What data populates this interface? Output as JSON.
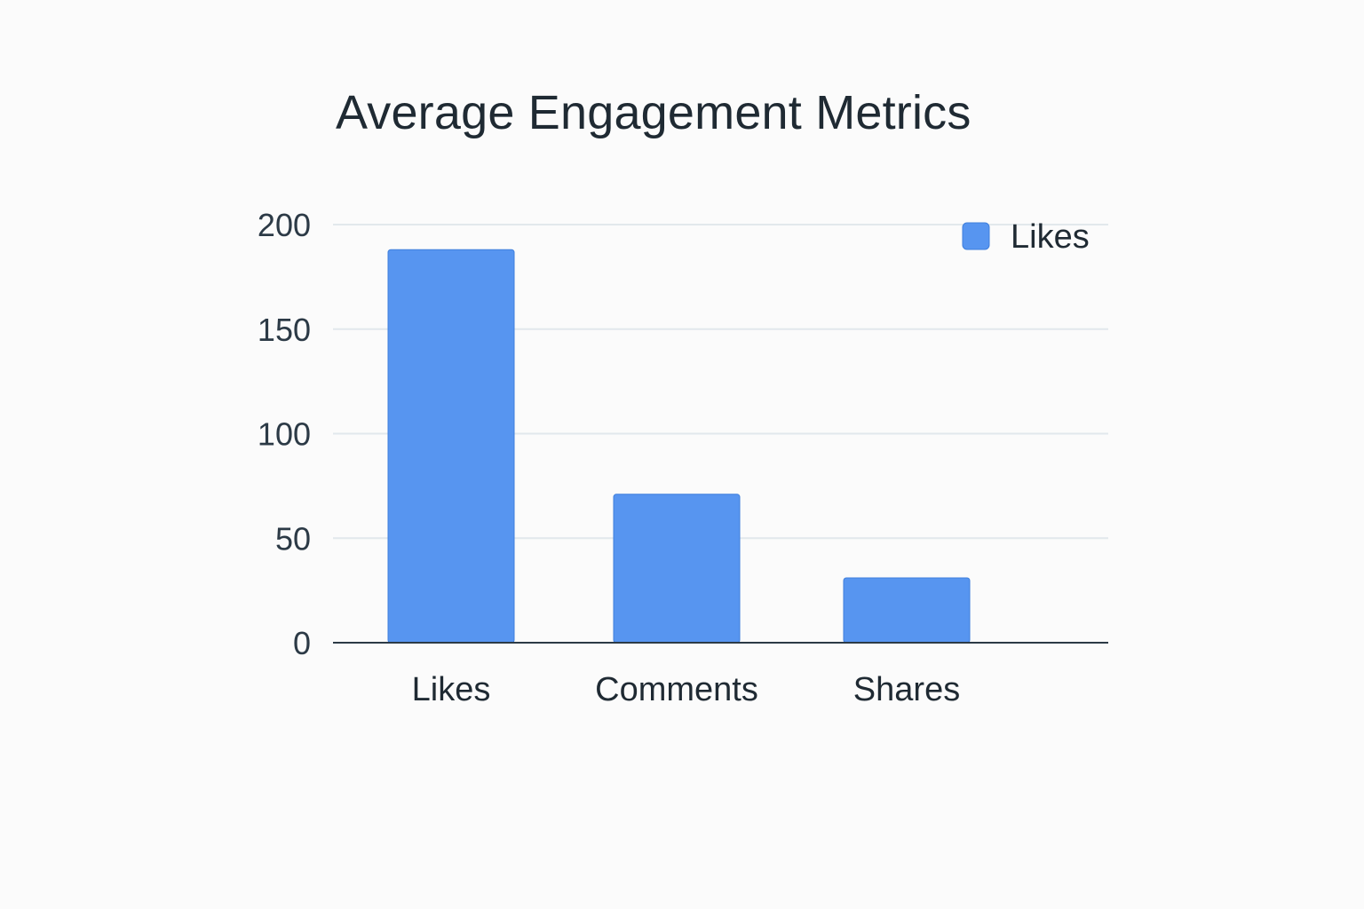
{
  "chart_data": {
    "type": "bar",
    "title": "Average Engagement Metrics",
    "xlabel": "",
    "ylabel": "",
    "categories": [
      "Likes",
      "Comments",
      "Shares"
    ],
    "series": [
      {
        "name": "Likes",
        "values": [
          188,
          71,
          31
        ],
        "color": "#5795f0"
      }
    ],
    "ylim": [
      0,
      200
    ],
    "yticks": [
      0,
      50,
      100,
      150,
      200
    ],
    "grid": true,
    "legend_position": "top-right",
    "colors": {
      "bar": "#5795f0",
      "bar_edge": "#3f7fdc",
      "grid": "#e2e8ec",
      "axis": "#2c3a46"
    }
  }
}
